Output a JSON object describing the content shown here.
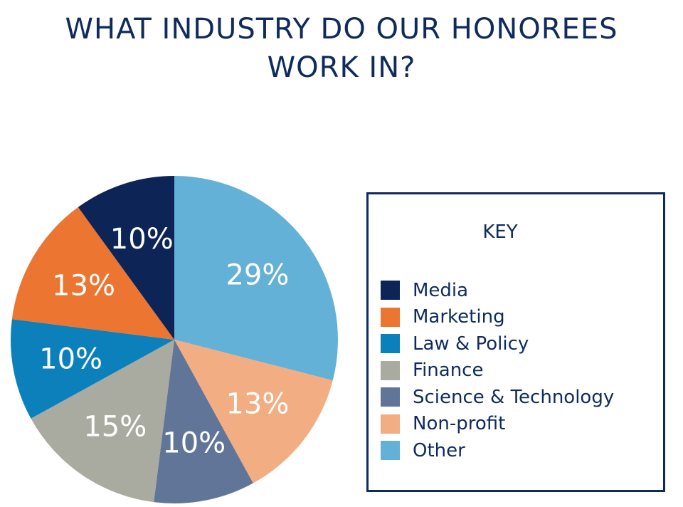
{
  "title_line1": "WHAT INDUSTRY DO OUR HONOREES",
  "title_line2": "WORK IN?",
  "legend": {
    "title": "KEY"
  },
  "chart_data": {
    "type": "pie",
    "title": "WHAT INDUSTRY DO OUR HONOREES WORK IN?",
    "legend_position": "right",
    "slices": [
      {
        "name": "Other",
        "value": 29,
        "label": "29%",
        "color": "#63b1d6"
      },
      {
        "name": "Non-profit",
        "value": 13,
        "label": "13%",
        "color": "#f3ad82"
      },
      {
        "name": "Science & Technology",
        "value": 10,
        "label": "10%",
        "color": "#617598"
      },
      {
        "name": "Finance",
        "value": 15,
        "label": "15%",
        "color": "#a9aba1"
      },
      {
        "name": "Law & Policy",
        "value": 10,
        "label": "10%",
        "color": "#0b80bb"
      },
      {
        "name": "Marketing",
        "value": 13,
        "label": "13%",
        "color": "#eb7531"
      },
      {
        "name": "Media",
        "value": 10,
        "label": "10%",
        "color": "#0d2457"
      }
    ],
    "legend_order": [
      "Media",
      "Marketing",
      "Law & Policy",
      "Finance",
      "Science & Technology",
      "Non-profit",
      "Other"
    ]
  }
}
